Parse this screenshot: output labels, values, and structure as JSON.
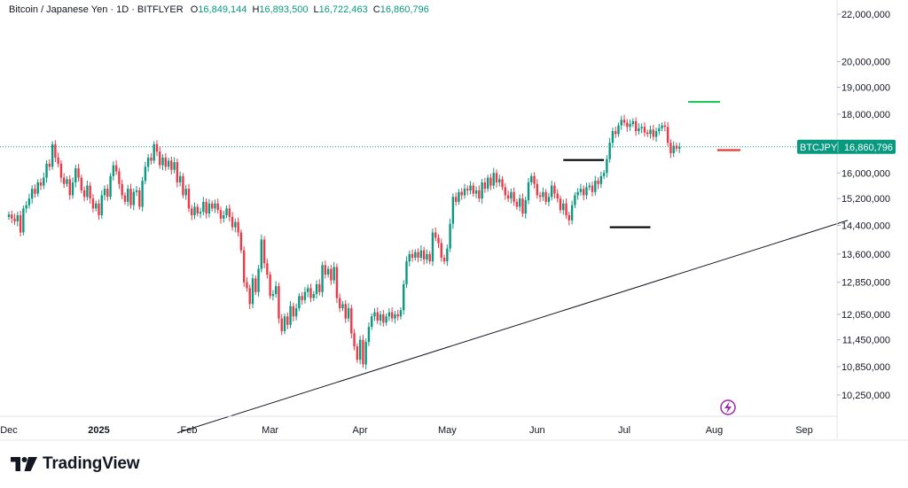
{
  "legend": {
    "symbol": "Bitcoin / Japanese Yen · 1D · BITFLYER",
    "open_key": "O",
    "open": "16,849,144",
    "high_key": "H",
    "high": "16,893,500",
    "low_key": "L",
    "low": "16,722,463",
    "close_key": "C",
    "close": "16,860,796"
  },
  "price_label": {
    "ticker": "BTCJPY",
    "price": "16,860,796"
  },
  "brand": {
    "name": "TradingView"
  },
  "colors": {
    "up": "#089981",
    "down": "#f23645",
    "trendline": "#131722",
    "level_green": "#22c55e",
    "level_black": "#000000",
    "level_red": "#e53935"
  },
  "chart_data": {
    "type": "candlestick",
    "symbol": "BTCJPY",
    "exchange": "BITFLYER",
    "interval": "1D",
    "y_scale": "log",
    "y_ticks": [
      {
        "value": 10250000,
        "label": "10,250,000"
      },
      {
        "value": 10850000,
        "label": "10,850,000"
      },
      {
        "value": 11450000,
        "label": "11,450,000"
      },
      {
        "value": 12050000,
        "label": "12,050,000"
      },
      {
        "value": 12850000,
        "label": "12,850,000"
      },
      {
        "value": 13600000,
        "label": "13,600,000"
      },
      {
        "value": 14400000,
        "label": "14,400,000"
      },
      {
        "value": 15200000,
        "label": "15,200,000"
      },
      {
        "value": 16000000,
        "label": "16,000,000"
      },
      {
        "value": 18000000,
        "label": "18,000,000"
      },
      {
        "value": 19000000,
        "label": "19,000,000"
      },
      {
        "value": 20000000,
        "label": "20,000,000"
      },
      {
        "value": 22000000,
        "label": "22,000,000"
      }
    ],
    "x_ticks": [
      {
        "date": "2024-12-01",
        "label": "Dec",
        "bold": false
      },
      {
        "date": "2025-01-01",
        "label": "2025",
        "bold": true
      },
      {
        "date": "2025-02-01",
        "label": "Feb",
        "bold": false
      },
      {
        "date": "2025-03-01",
        "label": "Mar",
        "bold": false
      },
      {
        "date": "2025-04-01",
        "label": "Apr",
        "bold": false
      },
      {
        "date": "2025-05-01",
        "label": "May",
        "bold": false
      },
      {
        "date": "2025-06-01",
        "label": "Jun",
        "bold": false
      },
      {
        "date": "2025-07-01",
        "label": "Jul",
        "bold": false
      },
      {
        "date": "2025-08-01",
        "label": "Aug",
        "bold": false
      },
      {
        "date": "2025-09-01",
        "label": "Sep",
        "bold": false
      }
    ],
    "last_price": 16860796,
    "series": [
      {
        "name": "BTCJPY",
        "start_date": "2024-12-01",
        "close": [
          14720000,
          14600000,
          14520000,
          14700000,
          14200000,
          14900000,
          15000000,
          15200000,
          15500000,
          15350000,
          15700000,
          15600000,
          15850000,
          16300000,
          16200000,
          16950000,
          16500000,
          16300000,
          15850000,
          15650000,
          15800000,
          15300000,
          15700000,
          16150000,
          15850000,
          15450000,
          15250000,
          15600000,
          15200000,
          14900000,
          15050000,
          14700000,
          15300000,
          15500000,
          15250000,
          15900000,
          16250000,
          16050000,
          15650000,
          15300000,
          15100000,
          15500000,
          15000000,
          15400000,
          15450000,
          14950000,
          15750000,
          16200000,
          16500000,
          16400000,
          16950000,
          16700000,
          16250000,
          16500000,
          16200000,
          16400000,
          16100000,
          16350000,
          15700000,
          15900000,
          15300000,
          15500000,
          14900000,
          14700000,
          14950000,
          14750000,
          14800000,
          15100000,
          14750000,
          15050000,
          14900000,
          15050000,
          14850000,
          14600000,
          14700000,
          14900000,
          14650000,
          14350000,
          14500000,
          14200000,
          13700000,
          12850000,
          12700000,
          12300000,
          12950000,
          12600000,
          13200000,
          14000000,
          13350000,
          13050000,
          12500000,
          12550000,
          12750000,
          11950000,
          11650000,
          12000000,
          11800000,
          12250000,
          12000000,
          12200000,
          12500000,
          12400000,
          12600000,
          12700000,
          12450000,
          12550000,
          12800000,
          12600000,
          13300000,
          13050000,
          13200000,
          12900000,
          13250000,
          12450000,
          12200000,
          12300000,
          11950000,
          12200000,
          11600000,
          11300000,
          11000000,
          11450000,
          10900000,
          11400000,
          11750000,
          12000000,
          12100000,
          11900000,
          12050000,
          11850000,
          12000000,
          12100000,
          11950000,
          12050000,
          12000000,
          12150000,
          12800000,
          13400000,
          13600000,
          13500000,
          13650000,
          13500000,
          13700000,
          13450000,
          13600000,
          13400000,
          14200000,
          14050000,
          13900000,
          13500000,
          13400000,
          13750000,
          14450000,
          15250000,
          15100000,
          15400000,
          15300000,
          15500000,
          15450000,
          15600000,
          15350000,
          15450000,
          15200000,
          15700000,
          15500000,
          15850000,
          15600000,
          16000000,
          15700000,
          15800000,
          15550000,
          15300000,
          15200000,
          15400000,
          15100000,
          14950000,
          15200000,
          14750000,
          15150000,
          15700000,
          15900000,
          15650000,
          15300000,
          15250000,
          15400000,
          15100000,
          15250000,
          15600000,
          15350000,
          15200000,
          14850000,
          15050000,
          14700000,
          14550000,
          15000000,
          15300000,
          15400000,
          15500000,
          15300000,
          15550000,
          15600000,
          15400000,
          15750000,
          15650000,
          15900000,
          16000000,
          16450000,
          17000000,
          17400000,
          17300000,
          17600000,
          17800000,
          17700000,
          17550000,
          17650000,
          17750000,
          17400000,
          17500000,
          17550000,
          17350000,
          17300000,
          17450000,
          17200000,
          17400000,
          17500000,
          17600000,
          17550000,
          17000000,
          16650000,
          16900000,
          16800000,
          16860796
        ]
      }
    ],
    "annotations": [
      {
        "type": "trendline",
        "from": {
          "date": "2025-01-28",
          "price": 9500000
        },
        "to": {
          "date": "2025-09-16",
          "price": 14550000
        }
      },
      {
        "type": "horizontal_segment",
        "color": "level_green",
        "from_date": "2025-07-23",
        "to_date": "2025-08-03",
        "price": 18450000
      },
      {
        "type": "horizontal_segment",
        "color": "level_black",
        "from_date": "2025-06-10",
        "to_date": "2025-06-24",
        "price": 16420000
      },
      {
        "type": "horizontal_segment",
        "color": "level_black",
        "from_date": "2025-06-26",
        "to_date": "2025-07-10",
        "price": 14350000
      },
      {
        "type": "horizontal_segment",
        "color": "level_red",
        "from_date": "2025-08-02",
        "to_date": "2025-08-10",
        "price": 16750000
      }
    ]
  }
}
